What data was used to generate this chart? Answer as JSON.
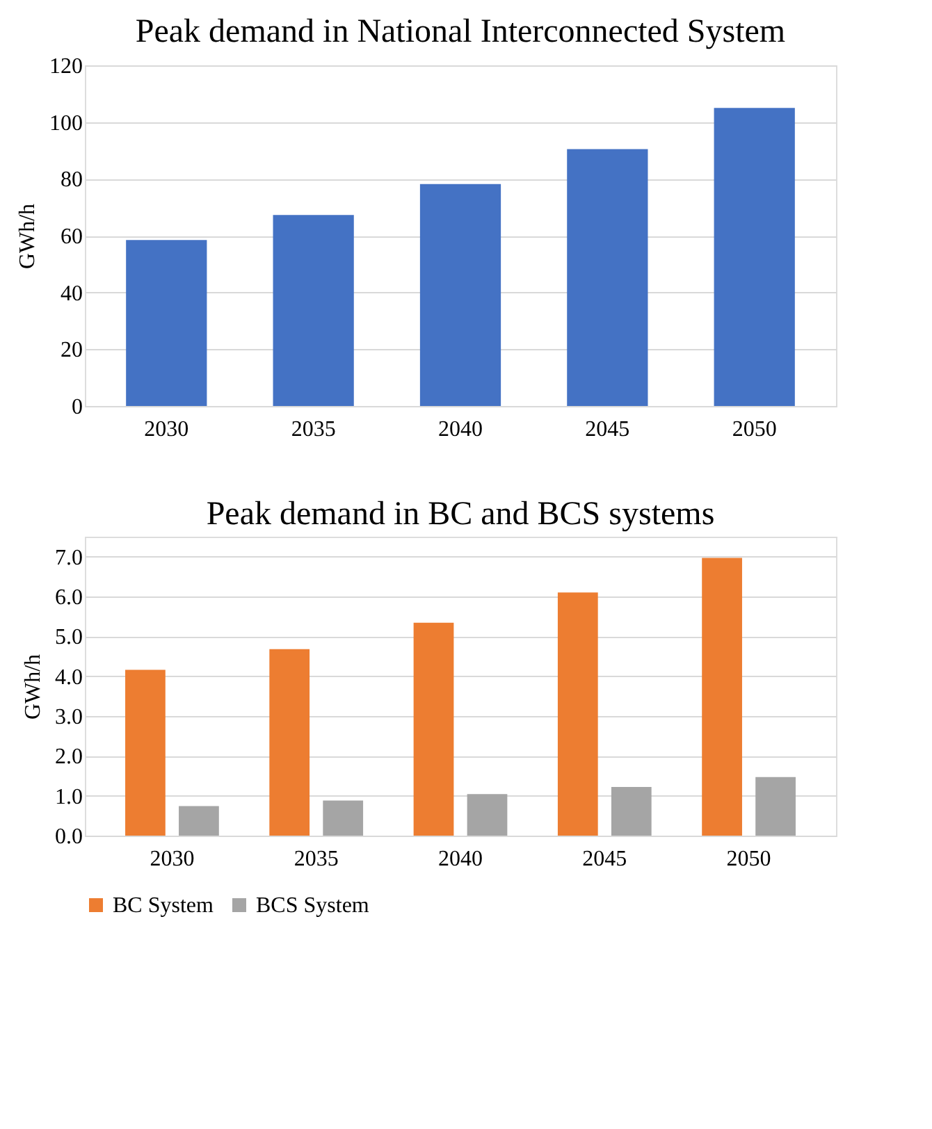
{
  "chart_data": [
    {
      "type": "bar",
      "title": "Peak demand in National Interconnected System",
      "ylabel": "GWh/h",
      "categories": [
        "2030",
        "2035",
        "2040",
        "2045",
        "2050"
      ],
      "series": [
        {
          "color": "#4472c4",
          "values": [
            58.5,
            67.3,
            78.2,
            90.5,
            105
          ]
        }
      ],
      "ylim": [
        0,
        120
      ],
      "yticks": [
        0,
        20,
        40,
        60,
        80,
        100,
        120
      ],
      "grid": "y"
    },
    {
      "type": "bar",
      "title": "Peak demand in BC and BCS systems",
      "ylabel": "GWh/h",
      "categories": [
        "2030",
        "2035",
        "2040",
        "2045",
        "2050"
      ],
      "series": [
        {
          "name": "BC System",
          "color": "#ed7d31",
          "values": [
            4.16,
            4.68,
            5.34,
            6.1,
            6.97
          ]
        },
        {
          "name": "BCS System",
          "color": "#a5a5a5",
          "values": [
            0.74,
            0.88,
            1.04,
            1.22,
            1.47
          ]
        }
      ],
      "ylim": [
        0,
        7.5
      ],
      "yticks": [
        {
          "value": 0,
          "label": "0.0"
        },
        {
          "value": 1,
          "label": "1.0"
        },
        {
          "value": 2,
          "label": "2.0"
        },
        {
          "value": 3,
          "label": "3.0"
        },
        {
          "value": 4,
          "label": "4.0"
        },
        {
          "value": 5,
          "label": "5.0"
        },
        {
          "value": 6,
          "label": "6.0"
        },
        {
          "value": 7,
          "label": "7.0"
        }
      ],
      "grid": "y",
      "legend": "bottom"
    }
  ]
}
